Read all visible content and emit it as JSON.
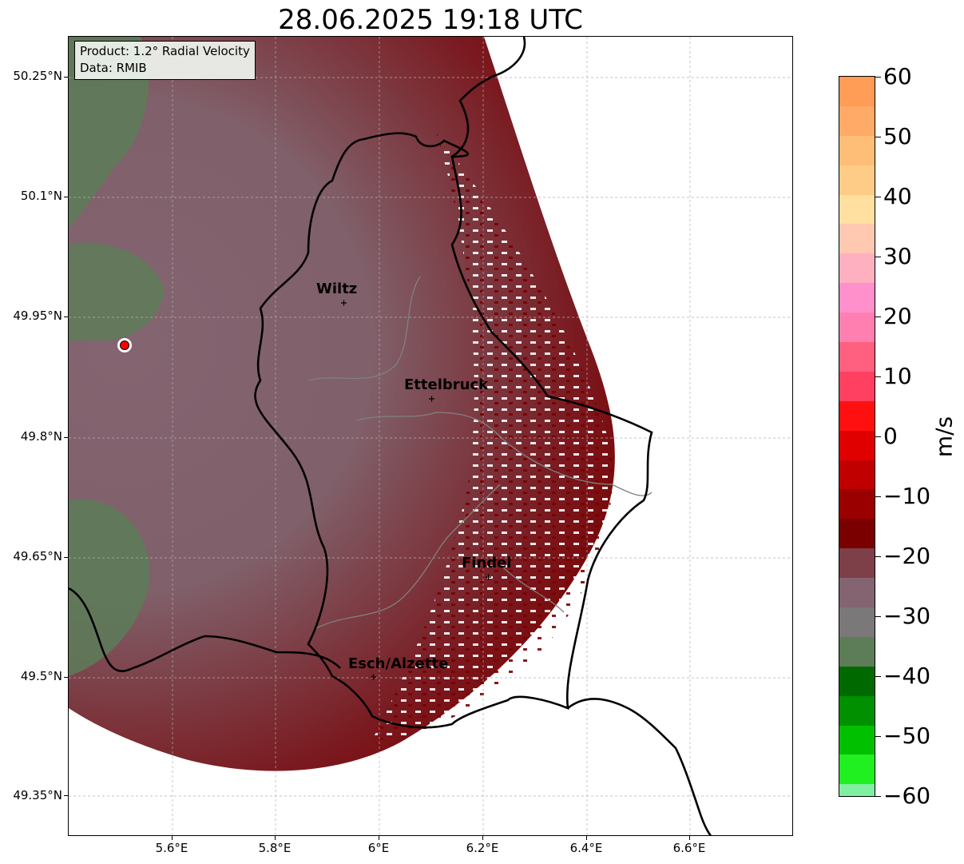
{
  "title": "28.06.2025 19:18 UTC",
  "info": {
    "product": "Product: 1.2° Radial Velocity",
    "data": "Data: RMIB"
  },
  "lat_labels": [
    "50.25°N",
    "50.1°N",
    "49.95°N",
    "49.8°N",
    "49.65°N",
    "49.5°N",
    "49.35°N"
  ],
  "lon_labels": [
    "5.6°E",
    "5.8°E",
    "6°E",
    "6.2°E",
    "6.4°E",
    "6.6°E"
  ],
  "cities": [
    {
      "name": "Wiltz",
      "lon": 5.93,
      "lat": 49.97
    },
    {
      "name": "Ettelbruck",
      "lon": 6.1,
      "lat": 49.85
    },
    {
      "name": "Findel",
      "lon": 6.21,
      "lat": 49.63
    },
    {
      "name": "Esch/Alzette",
      "lon": 5.98,
      "lat": 49.5
    }
  ],
  "radar_site": {
    "lon": 5.51,
    "lat": 49.91,
    "color": "#ff0000"
  },
  "colorbar": {
    "unit": "m/s",
    "ticks": [
      "60",
      "50",
      "40",
      "30",
      "20",
      "10",
      "0",
      "−10",
      "−20",
      "−30",
      "−40",
      "−50",
      "−60"
    ],
    "range": [
      -60,
      60
    ]
  },
  "colors": {
    "outbound_dark": "#7a0000",
    "outbound_mid": "#7d4048",
    "near_zero": "#836470",
    "inbound": "#5c7d58",
    "border": "#000000"
  }
}
